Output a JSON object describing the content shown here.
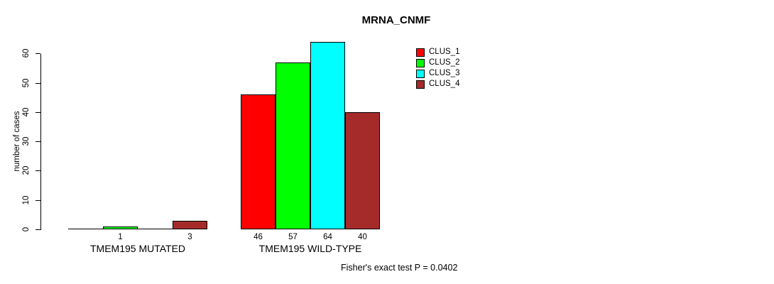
{
  "chart_data": {
    "type": "bar",
    "title": "MRNA_CNMF",
    "ylabel": "number of cases",
    "ylim": [
      0,
      64
    ],
    "yticks": [
      0,
      10,
      20,
      30,
      40,
      50,
      60
    ],
    "categories": [
      "TMEM195 MUTATED",
      "TMEM195 WILD-TYPE"
    ],
    "series": [
      {
        "name": "CLUS_1",
        "color": "#FF0000",
        "values": [
          0,
          46
        ]
      },
      {
        "name": "CLUS_2",
        "color": "#00FF00",
        "values": [
          1,
          57
        ]
      },
      {
        "name": "CLUS_3",
        "color": "#00FFFF",
        "values": [
          0,
          64
        ]
      },
      {
        "name": "CLUS_4",
        "color": "#A52A2A",
        "values": [
          3,
          40
        ]
      }
    ],
    "bar_value_labels": [
      [
        "",
        "1",
        "",
        "3"
      ],
      [
        "46",
        "57",
        "64",
        "40"
      ]
    ],
    "legend_position": "top-right",
    "grid": false,
    "annotation": "Fisher's exact test P = 0.0402"
  }
}
